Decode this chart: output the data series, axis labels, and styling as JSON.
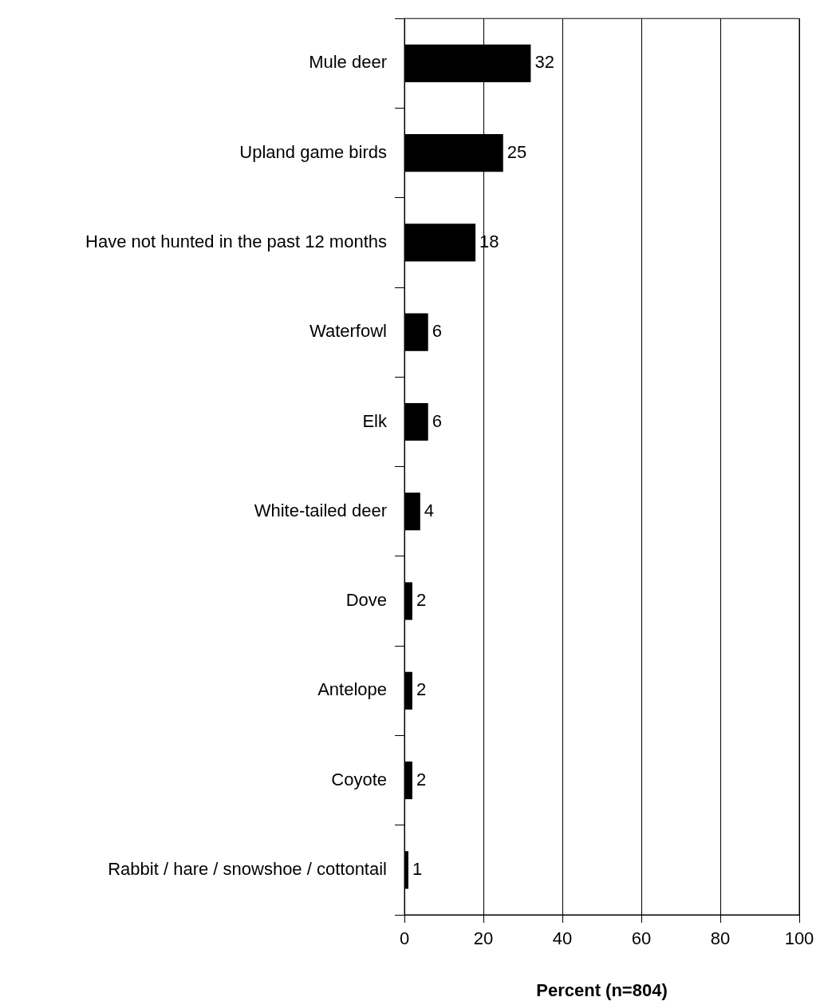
{
  "chart_data": {
    "type": "bar",
    "orientation": "horizontal",
    "categories": [
      "Mule deer",
      "Upland game birds",
      "Have not hunted in the past 12 months",
      "Waterfowl",
      "Elk",
      "White-tailed deer",
      "Dove",
      "Antelope",
      "Coyote",
      "Rabbit / hare / snowshoe / cottontail"
    ],
    "values": [
      32,
      25,
      18,
      6,
      6,
      4,
      2,
      2,
      2,
      1
    ],
    "color": "#000000",
    "xlabel": "Percent (n=804)",
    "xlim": [
      0,
      100
    ],
    "xticks": [
      0,
      20,
      40,
      60,
      80,
      100
    ],
    "grid": "x",
    "legend": false,
    "data_labels": true
  }
}
